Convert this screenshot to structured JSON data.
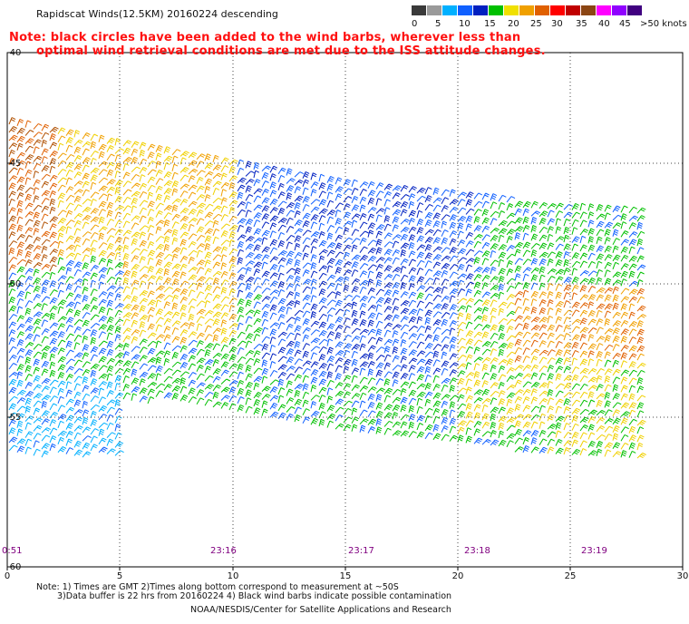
{
  "header": {
    "title": "Rapidscat Winds(12.5KM) 20160224 descending",
    "note_line1": "Note: black circles have been added to the wind barbs, wherever less than",
    "note_line2": "optimal wind retrieval conditions are met due to the ISS attitude changes."
  },
  "colorbar": {
    "colors": [
      "#3a3a3a",
      "#9a9a9a",
      "#00b0ff",
      "#1060ff",
      "#0020c0",
      "#00c000",
      "#f0e000",
      "#f0a000",
      "#e06000",
      "#ff0000",
      "#c00000",
      "#8b4513",
      "#ff00ff",
      "#9000ff",
      "#400080"
    ],
    "labels": [
      "0",
      "5",
      "10",
      "15",
      "20",
      "25",
      "30",
      "35",
      "40",
      "45",
      ">50 knots"
    ],
    "label_colors": [
      0,
      2,
      4,
      5,
      6,
      7,
      8,
      9,
      10,
      11,
      12
    ]
  },
  "axes": {
    "x_ticks": [
      "0",
      "5",
      "10",
      "15",
      "20",
      "25",
      "30"
    ],
    "y_ticks": [
      "-40",
      "-45",
      "-50",
      "-55",
      "-60"
    ],
    "y_tick_labels": [
      "40",
      "45",
      "50",
      "55",
      "60"
    ]
  },
  "times": [
    "0:51",
    "23:16",
    "23:17",
    "23:18",
    "23:19"
  ],
  "footer": {
    "line1": "Note: 1) Times are GMT 2)Times along bottom correspond to measurement at ~50S",
    "line2": "3)Data buffer is 22 hrs from 20160224 4) Black wind barbs indicate possible contamination",
    "line3": "NOAA/NESDIS/Center for Satellite Applications and Research"
  }
}
